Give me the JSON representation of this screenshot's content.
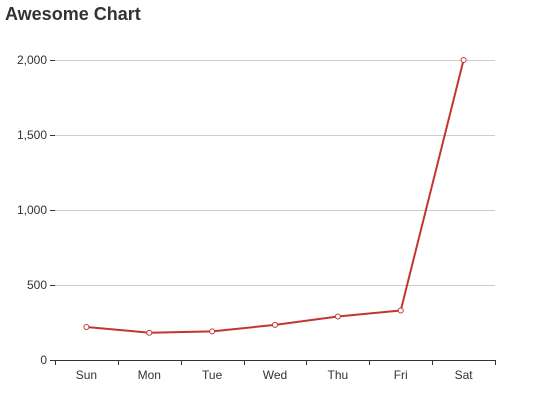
{
  "chart_data": {
    "type": "line",
    "title": "Awesome Chart",
    "categories": [
      "Sun",
      "Mon",
      "Tue",
      "Wed",
      "Thu",
      "Fri",
      "Sat"
    ],
    "series": [
      {
        "values": [
          220,
          182,
          191,
          234,
          290,
          330,
          2000
        ],
        "color": "#c23531"
      }
    ],
    "ylim": [
      0,
      2000
    ],
    "yticks": [
      0,
      500,
      1000,
      1500,
      2000
    ],
    "ytick_labels": [
      "0",
      "500",
      "1,000",
      "1,500",
      "2,000"
    ],
    "grid": true,
    "xlabel": "",
    "ylabel": ""
  }
}
